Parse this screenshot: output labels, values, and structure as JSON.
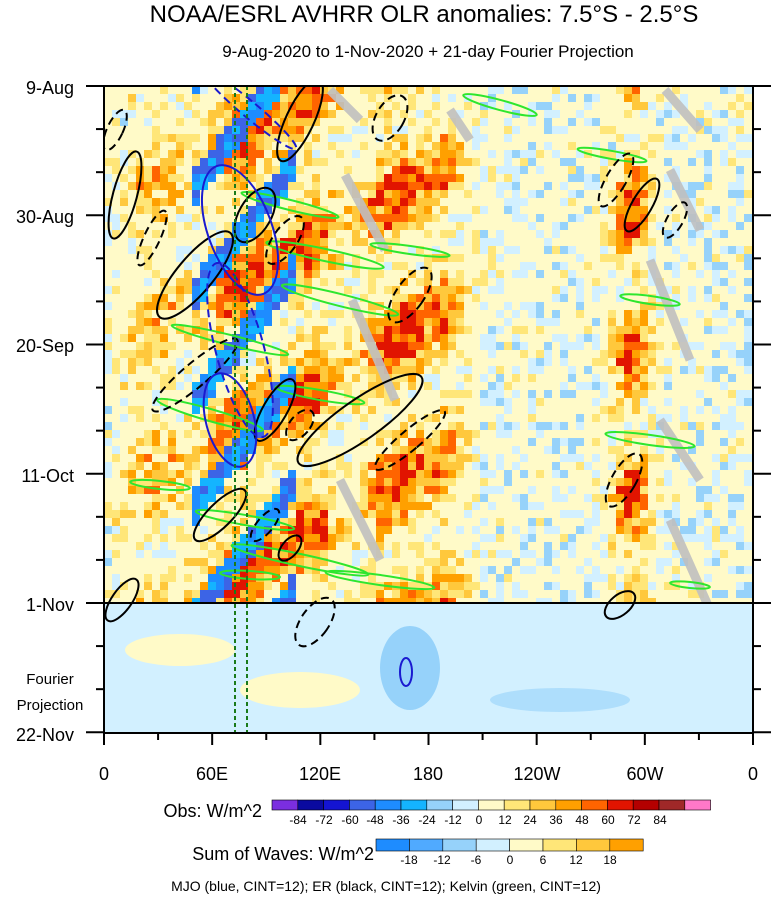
{
  "chart_data": {
    "type": "heatmap",
    "title": "NOAA/ESRL AVHRR OLR anomalies: 7.5°S - 2.5°S",
    "subtitle": "9-Aug-2020 to 1-Nov-2020 + 21-day Fourier Projection",
    "x_ticks": [
      "0",
      "60E",
      "120E",
      "180",
      "120W",
      "60W",
      "0"
    ],
    "y_ticks": [
      "9-Aug",
      "30-Aug",
      "20-Sep",
      "11-Oct",
      "1-Nov",
      "22-Nov"
    ],
    "projection_label": [
      "Fourier",
      "Projection"
    ],
    "obs_colorbar": {
      "label": "Obs: W/m^2",
      "ticks": [
        "-84",
        "-72",
        "-60",
        "-48",
        "-36",
        "-24",
        "-12",
        "0",
        "12",
        "24",
        "36",
        "48",
        "60",
        "72",
        "84"
      ],
      "colors": [
        "#7b2ee0",
        "#0a0aa0",
        "#1414d2",
        "#3c64e6",
        "#1e8cff",
        "#14b4ff",
        "#96d2fa",
        "#d2f0ff",
        "#fffac8",
        "#ffe678",
        "#ffc83c",
        "#ffa000",
        "#ff6400",
        "#e11400",
        "#b40000",
        "#a02828",
        "#ff78c8"
      ]
    },
    "waves_colorbar": {
      "label": "Sum of Waves: W/m^2",
      "ticks": [
        "-18",
        "-12",
        "-6",
        "0",
        "6",
        "12",
        "18"
      ],
      "colors": [
        "#1e8cff",
        "#50aaff",
        "#96d2fa",
        "#d2f0ff",
        "#fffac8",
        "#ffe678",
        "#ffc83c",
        "#ffa000"
      ]
    },
    "footnote": "MJO (blue, CINT=12); ER (black, CINT=12); Kelvin (green, CINT=12)",
    "colors": {
      "mjo": "#1a1ad0",
      "er": "#000000",
      "kelvin": "#2ee62e",
      "divider": "#000000",
      "projection_bg": "#d2f0ff",
      "marker": "#1a7a1a"
    }
  }
}
